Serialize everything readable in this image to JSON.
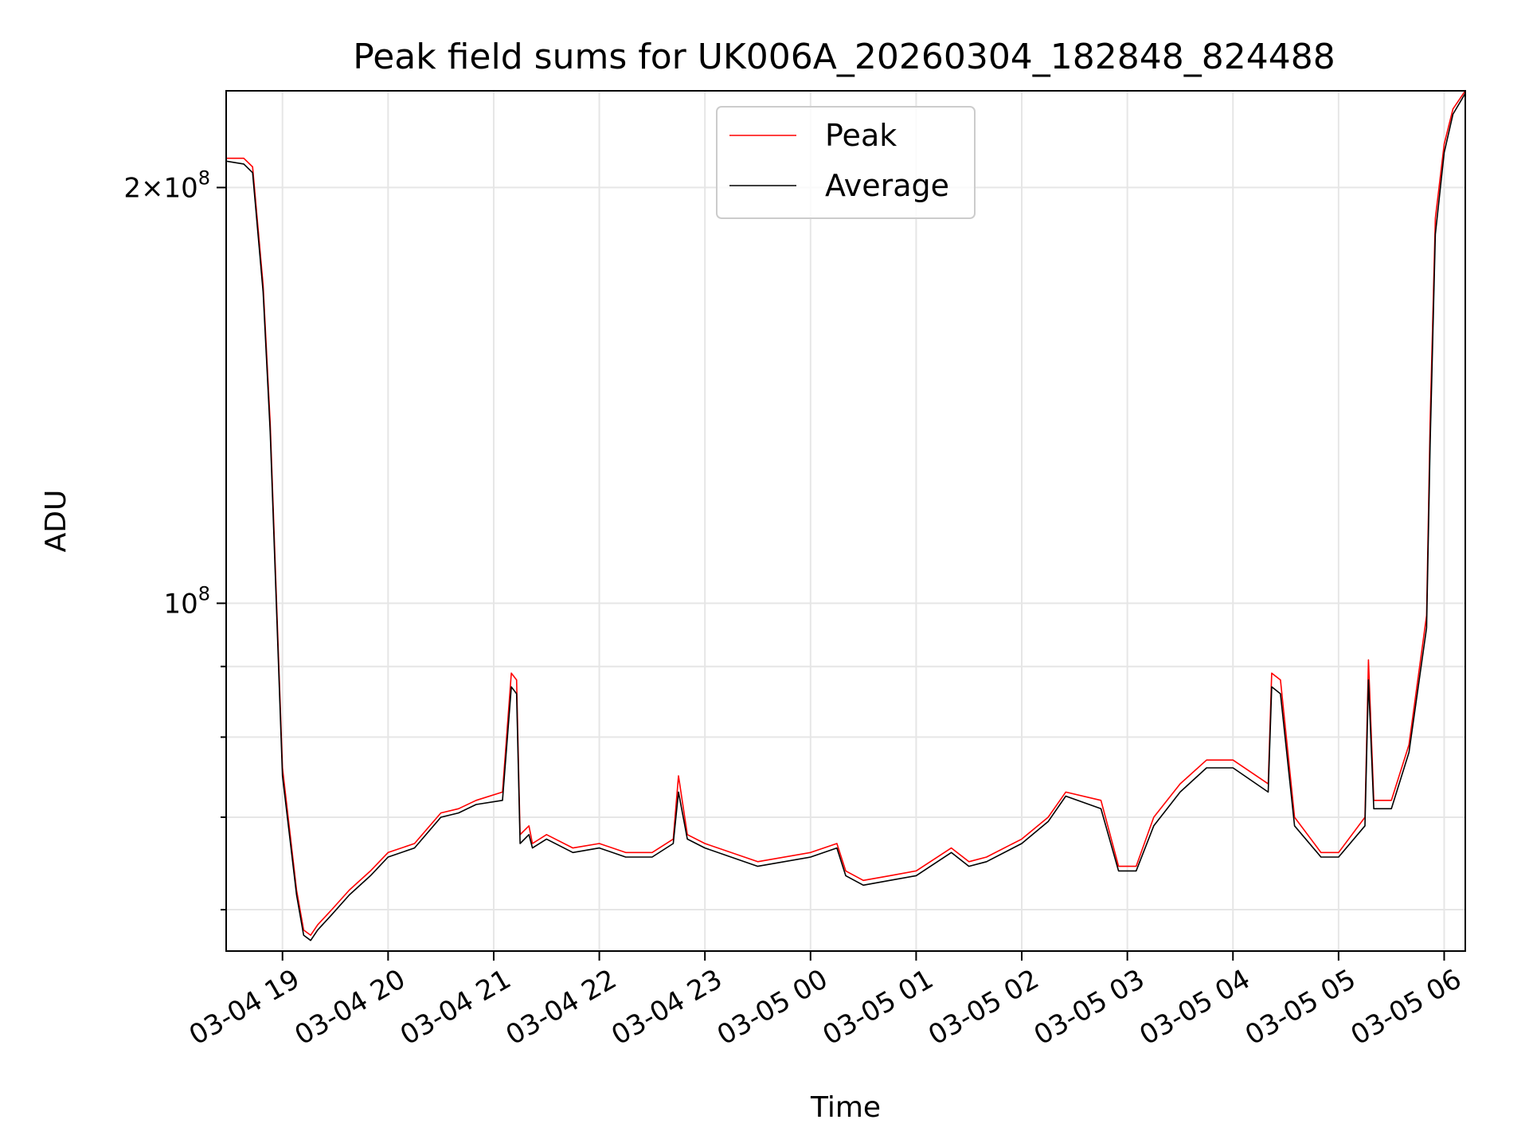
{
  "chart_data": {
    "type": "line",
    "title": "Peak field sums for UK006A_20260304_182848_824488",
    "xlabel": "Time",
    "ylabel": "ADU",
    "y_scale": "log",
    "ylim": [
      56000000,
      235000000
    ],
    "xlim": [
      "2026-03-04 18:28",
      "2026-03-05 06:12"
    ],
    "grid": true,
    "legend_position": "upper center",
    "x_tick_labels": [
      "03-04 19",
      "03-04 20",
      "03-04 21",
      "03-04 22",
      "03-04 23",
      "03-05 00",
      "03-05 01",
      "03-05 02",
      "03-05 03",
      "03-05 04",
      "03-05 05",
      "03-05 06"
    ],
    "x_tick_times": [
      "2026-03-04 19:00",
      "2026-03-04 20:00",
      "2026-03-04 21:00",
      "2026-03-04 22:00",
      "2026-03-04 23:00",
      "2026-03-05 00:00",
      "2026-03-05 01:00",
      "2026-03-05 02:00",
      "2026-03-05 03:00",
      "2026-03-05 04:00",
      "2026-03-05 05:00",
      "2026-03-05 06:00"
    ],
    "y_major_ticks": [
      {
        "value": 100000000,
        "mantissa": "",
        "exponent": "8"
      },
      {
        "value": 200000000,
        "mantissa": "2",
        "exponent": "8"
      }
    ],
    "y_minor_ticks": [
      60000000,
      70000000,
      80000000,
      90000000
    ],
    "series": [
      {
        "name": "Peak",
        "color": "#ff0000",
        "x": [
          "2026-03-04 18:28",
          "2026-03-04 18:38",
          "2026-03-04 18:43",
          "2026-03-04 18:49",
          "2026-03-04 18:53",
          "2026-03-04 19:00",
          "2026-03-04 19:08",
          "2026-03-04 19:12",
          "2026-03-04 19:16",
          "2026-03-04 19:20",
          "2026-03-04 19:28",
          "2026-03-04 19:38",
          "2026-03-04 19:50",
          "2026-03-04 20:00",
          "2026-03-04 20:15",
          "2026-03-04 20:30",
          "2026-03-04 20:40",
          "2026-03-04 20:50",
          "2026-03-04 21:05",
          "2026-03-04 21:10",
          "2026-03-04 21:13",
          "2026-03-04 21:15",
          "2026-03-04 21:20",
          "2026-03-04 21:22",
          "2026-03-04 21:30",
          "2026-03-04 21:45",
          "2026-03-04 22:00",
          "2026-03-04 22:15",
          "2026-03-04 22:30",
          "2026-03-04 22:42",
          "2026-03-04 22:45",
          "2026-03-04 22:50",
          "2026-03-04 23:00",
          "2026-03-04 23:30",
          "2026-03-05 00:00",
          "2026-03-05 00:15",
          "2026-03-05 00:20",
          "2026-03-05 00:30",
          "2026-03-05 00:45",
          "2026-03-05 01:00",
          "2026-03-05 01:20",
          "2026-03-05 01:30",
          "2026-03-05 01:40",
          "2026-03-05 02:00",
          "2026-03-05 02:15",
          "2026-03-05 02:25",
          "2026-03-05 02:45",
          "2026-03-05 02:55",
          "2026-03-05 03:05",
          "2026-03-05 03:15",
          "2026-03-05 03:30",
          "2026-03-05 03:45",
          "2026-03-05 04:00",
          "2026-03-05 04:20",
          "2026-03-05 04:22",
          "2026-03-05 04:27",
          "2026-03-05 04:35",
          "2026-03-05 04:50",
          "2026-03-05 05:00",
          "2026-03-05 05:15",
          "2026-03-05 05:17",
          "2026-03-05 05:20",
          "2026-03-05 05:30",
          "2026-03-05 05:40",
          "2026-03-05 05:50",
          "2026-03-05 05:52",
          "2026-03-05 05:55",
          "2026-03-05 06:00",
          "2026-03-05 06:05",
          "2026-03-05 06:12"
        ],
        "y": [
          210000000,
          210000000,
          207000000,
          170000000,
          135000000,
          76000000,
          62000000,
          58000000,
          57500000,
          58500000,
          60000000,
          62000000,
          64000000,
          66000000,
          67000000,
          70500000,
          71000000,
          72000000,
          73000000,
          89000000,
          88000000,
          68000000,
          69000000,
          67000000,
          68000000,
          66500000,
          67000000,
          66000000,
          66000000,
          67500000,
          75000000,
          68000000,
          67000000,
          65000000,
          66000000,
          67000000,
          64000000,
          63000000,
          63500000,
          64000000,
          66500000,
          65000000,
          65500000,
          67500000,
          70000000,
          73000000,
          72000000,
          64500000,
          64500000,
          70000000,
          74000000,
          77000000,
          77000000,
          74000000,
          89000000,
          88000000,
          70000000,
          66000000,
          66000000,
          70000000,
          91000000,
          72000000,
          72000000,
          79000000,
          98000000,
          135000000,
          190000000,
          215000000,
          228000000,
          235000000
        ]
      },
      {
        "name": "Average",
        "color": "#000000",
        "x": [
          "2026-03-04 18:28",
          "2026-03-04 18:38",
          "2026-03-04 18:43",
          "2026-03-04 18:49",
          "2026-03-04 18:53",
          "2026-03-04 19:00",
          "2026-03-04 19:08",
          "2026-03-04 19:12",
          "2026-03-04 19:16",
          "2026-03-04 19:20",
          "2026-03-04 19:28",
          "2026-03-04 19:38",
          "2026-03-04 19:50",
          "2026-03-04 20:00",
          "2026-03-04 20:15",
          "2026-03-04 20:30",
          "2026-03-04 20:40",
          "2026-03-04 20:50",
          "2026-03-04 21:05",
          "2026-03-04 21:10",
          "2026-03-04 21:13",
          "2026-03-04 21:15",
          "2026-03-04 21:20",
          "2026-03-04 21:22",
          "2026-03-04 21:30",
          "2026-03-04 21:45",
          "2026-03-04 22:00",
          "2026-03-04 22:15",
          "2026-03-04 22:30",
          "2026-03-04 22:42",
          "2026-03-04 22:45",
          "2026-03-04 22:50",
          "2026-03-04 23:00",
          "2026-03-04 23:30",
          "2026-03-05 00:00",
          "2026-03-05 00:15",
          "2026-03-05 00:20",
          "2026-03-05 00:30",
          "2026-03-05 00:45",
          "2026-03-05 01:00",
          "2026-03-05 01:20",
          "2026-03-05 01:30",
          "2026-03-05 01:40",
          "2026-03-05 02:00",
          "2026-03-05 02:15",
          "2026-03-05 02:25",
          "2026-03-05 02:45",
          "2026-03-05 02:55",
          "2026-03-05 03:05",
          "2026-03-05 03:15",
          "2026-03-05 03:30",
          "2026-03-05 03:45",
          "2026-03-05 04:00",
          "2026-03-05 04:20",
          "2026-03-05 04:22",
          "2026-03-05 04:27",
          "2026-03-05 04:35",
          "2026-03-05 04:50",
          "2026-03-05 05:00",
          "2026-03-05 05:15",
          "2026-03-05 05:17",
          "2026-03-05 05:20",
          "2026-03-05 05:30",
          "2026-03-05 05:40",
          "2026-03-05 05:50",
          "2026-03-05 05:52",
          "2026-03-05 05:55",
          "2026-03-05 06:00",
          "2026-03-05 06:05",
          "2026-03-05 06:12"
        ],
        "y": [
          209000000,
          208000000,
          205000000,
          168000000,
          133000000,
          75000000,
          61500000,
          57500000,
          57000000,
          58000000,
          59500000,
          61500000,
          63500000,
          65500000,
          66500000,
          70000000,
          70500000,
          71500000,
          72000000,
          87000000,
          86000000,
          67000000,
          68000000,
          66500000,
          67500000,
          66000000,
          66500000,
          65500000,
          65500000,
          67000000,
          73000000,
          67500000,
          66500000,
          64500000,
          65500000,
          66500000,
          63500000,
          62500000,
          63000000,
          63500000,
          66000000,
          64500000,
          65000000,
          67000000,
          69500000,
          72500000,
          71000000,
          64000000,
          64000000,
          69000000,
          73000000,
          76000000,
          76000000,
          73000000,
          87000000,
          86000000,
          69000000,
          65500000,
          65500000,
          69000000,
          88000000,
          71000000,
          71000000,
          78000000,
          96000000,
          130000000,
          185000000,
          212000000,
          226000000,
          234000000
        ]
      }
    ]
  }
}
